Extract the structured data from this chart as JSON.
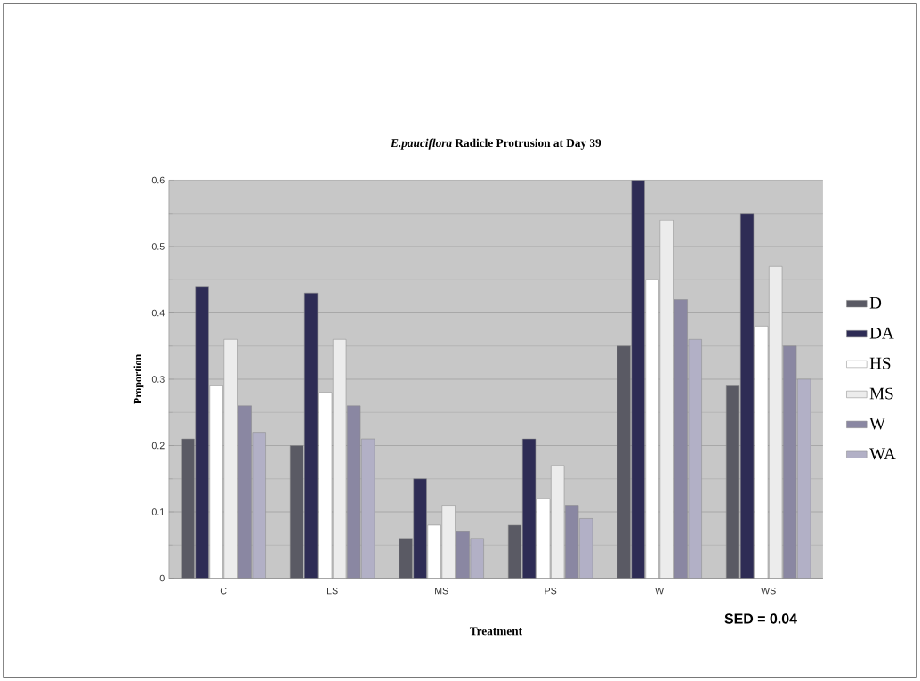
{
  "chart_data": {
    "type": "bar",
    "title": "*E.pauciflora* Radicle Protrusion at Day 39",
    "xlabel": "Treatment",
    "ylabel": "Proportion",
    "categories": [
      "C",
      "LS",
      "MS",
      "PS",
      "W",
      "WS"
    ],
    "series": [
      {
        "name": "D",
        "color": "#5a5a64",
        "values": [
          0.21,
          0.2,
          0.06,
          0.08,
          0.35,
          0.29
        ]
      },
      {
        "name": "DA",
        "color": "#2e2c55",
        "values": [
          0.44,
          0.43,
          0.15,
          0.21,
          0.6,
          0.55
        ]
      },
      {
        "name": "HS",
        "color": "#ffffff",
        "values": [
          0.29,
          0.28,
          0.08,
          0.12,
          0.45,
          0.38
        ]
      },
      {
        "name": "MS",
        "color": "#ececec",
        "values": [
          0.36,
          0.36,
          0.11,
          0.17,
          0.54,
          0.47
        ]
      },
      {
        "name": "W",
        "color": "#8a87a2",
        "values": [
          0.26,
          0.26,
          0.07,
          0.11,
          0.42,
          0.35
        ]
      },
      {
        "name": "WA",
        "color": "#b2b0c6",
        "values": [
          0.22,
          0.21,
          0.06,
          0.09,
          0.36,
          0.3
        ]
      }
    ],
    "ylim": [
      0,
      0.6
    ],
    "yticks": [
      0,
      0.1,
      0.2,
      0.3,
      0.4,
      0.5,
      0.6
    ],
    "grid": "y",
    "legend": "right",
    "annotations": [
      "SED = 0.04"
    ]
  }
}
